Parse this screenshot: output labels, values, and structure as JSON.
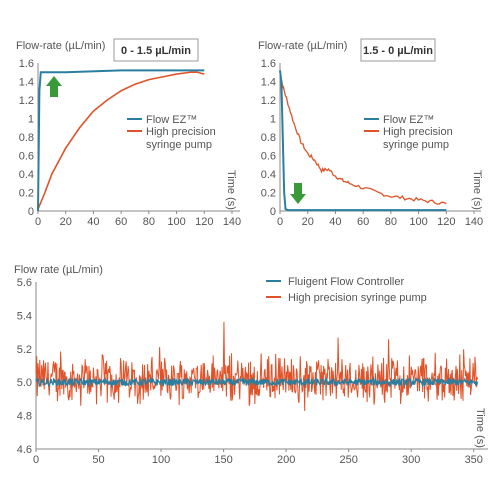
{
  "colors": {
    "flow_controller": "#2a7fa0",
    "syringe_pump": "#e0532a",
    "arrow": "#3a9a3a",
    "axis": "#888888"
  },
  "chart_data": [
    {
      "type": "line",
      "title": "0 - 1.5 µL/min",
      "ylabel": "Flow-rate (µL/min)",
      "xlabel": "Time (s)",
      "xlim": [
        0,
        140
      ],
      "ylim": [
        0,
        1.6
      ],
      "xticks": [
        "0",
        "20",
        "40",
        "60",
        "80",
        "100",
        "120",
        "140"
      ],
      "yticks": [
        "0",
        "0.2",
        "0.4",
        "0.6",
        "0.8",
        "1",
        "1.2",
        "1.4",
        "1.6"
      ],
      "legend_position": "right",
      "arrow": "up",
      "series": [
        {
          "name": "Flow EZ™",
          "x": [
            0,
            1,
            2,
            3,
            5,
            20,
            60,
            100,
            120
          ],
          "y": [
            0,
            1.3,
            1.5,
            1.5,
            1.5,
            1.5,
            1.52,
            1.52,
            1.52
          ]
        },
        {
          "name": "High precision syringe pump",
          "x": [
            0,
            5,
            10,
            20,
            30,
            40,
            50,
            60,
            70,
            80,
            90,
            100,
            110,
            115,
            120
          ],
          "y": [
            0.02,
            0.2,
            0.4,
            0.68,
            0.9,
            1.08,
            1.2,
            1.3,
            1.37,
            1.42,
            1.45,
            1.48,
            1.5,
            1.5,
            1.48
          ]
        }
      ]
    },
    {
      "type": "line",
      "title": "1.5 - 0 µL/min",
      "ylabel": "Flow-rate (µL/min)",
      "xlabel": "Time (s)",
      "xlim": [
        0,
        140
      ],
      "ylim": [
        0,
        1.6
      ],
      "xticks": [
        "0",
        "20",
        "40",
        "60",
        "80",
        "100",
        "120",
        "140"
      ],
      "yticks": [
        "0",
        "0.2",
        "0.4",
        "0.6",
        "0.8",
        "1",
        "1.2",
        "1.4",
        "1.6"
      ],
      "legend_position": "right",
      "arrow": "down",
      "series": [
        {
          "name": "Flow EZ™",
          "x": [
            0,
            1,
            2,
            3,
            4,
            6,
            20,
            60,
            120
          ],
          "y": [
            1.52,
            1.4,
            0.8,
            0.2,
            0.02,
            0.01,
            0.01,
            0.01,
            0.01
          ]
        },
        {
          "name": "High precision syringe pump",
          "x": [
            0,
            2,
            5,
            10,
            15,
            20,
            25,
            30,
            35,
            40,
            45,
            50,
            60,
            70,
            80,
            90,
            100,
            110,
            120
          ],
          "y": [
            1.5,
            1.35,
            1.2,
            0.95,
            0.75,
            0.62,
            0.55,
            0.44,
            0.45,
            0.38,
            0.33,
            0.3,
            0.25,
            0.2,
            0.16,
            0.14,
            0.12,
            0.1,
            0.08
          ]
        }
      ]
    },
    {
      "type": "line",
      "ylabel": "Flow rate (µL/min)",
      "xlabel": "Time (s)",
      "xlim": [
        0,
        355
      ],
      "ylim": [
        4.6,
        5.6
      ],
      "xticks": [
        "0",
        "50",
        "100",
        "150",
        "200",
        "250",
        "300",
        "350"
      ],
      "yticks": [
        "4.6",
        "4.8",
        "5.0",
        "5.2",
        "5.4",
        "5.6"
      ],
      "legend_position": "top-center",
      "series": [
        {
          "name": "Fluigent Flow Controller",
          "mean": 5.0,
          "noise_amplitude": 0.02
        },
        {
          "name": "High precision syringe pump",
          "mean": 5.02,
          "noise_amplitude": 0.12,
          "range": [
            4.72,
            5.5
          ]
        }
      ]
    }
  ]
}
